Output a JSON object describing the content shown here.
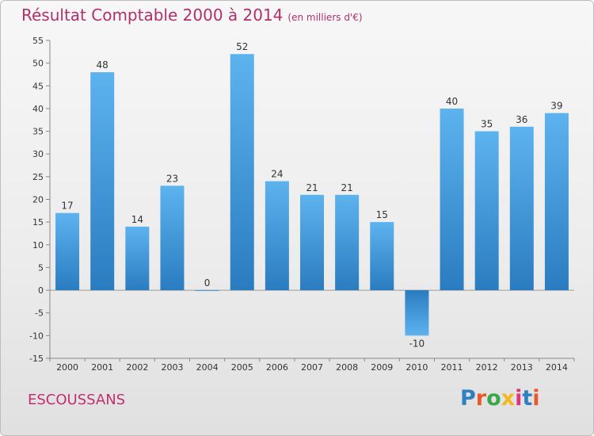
{
  "title": "Résultat Comptable 2000 à 2014",
  "subtitle": "(en milliers d'€)",
  "town": "ESCOUSSANS",
  "logo": {
    "text": "Proxiti",
    "colors": [
      "#2f7fc1",
      "#e8582a",
      "#39a84a",
      "#f2b81e",
      "#e2337c",
      "#2f7fc1",
      "#e8582a"
    ]
  },
  "chart_data": {
    "type": "bar",
    "title": "Résultat Comptable 2000 à 2014",
    "subtitle": "(en milliers d'€)",
    "xlabel": "",
    "ylabel": "",
    "categories": [
      "2000",
      "2001",
      "2002",
      "2003",
      "2004",
      "2005",
      "2006",
      "2007",
      "2008",
      "2009",
      "2010",
      "2011",
      "2012",
      "2013",
      "2014"
    ],
    "values": [
      17,
      48,
      14,
      23,
      0,
      52,
      24,
      21,
      21,
      15,
      -10,
      40,
      35,
      36,
      39
    ],
    "value_labels": [
      "17",
      "48",
      "14",
      "23",
      "0",
      "52",
      "24",
      "21",
      "21",
      "15",
      "-10",
      "40",
      "35",
      "36",
      "39"
    ],
    "ylim": [
      -15,
      55
    ],
    "yticks": [
      -15,
      -10,
      -5,
      0,
      5,
      10,
      15,
      20,
      25,
      30,
      35,
      40,
      45,
      50,
      55
    ],
    "grid": false,
    "bar_color": "#3d94d6",
    "label_color": "#333333"
  }
}
